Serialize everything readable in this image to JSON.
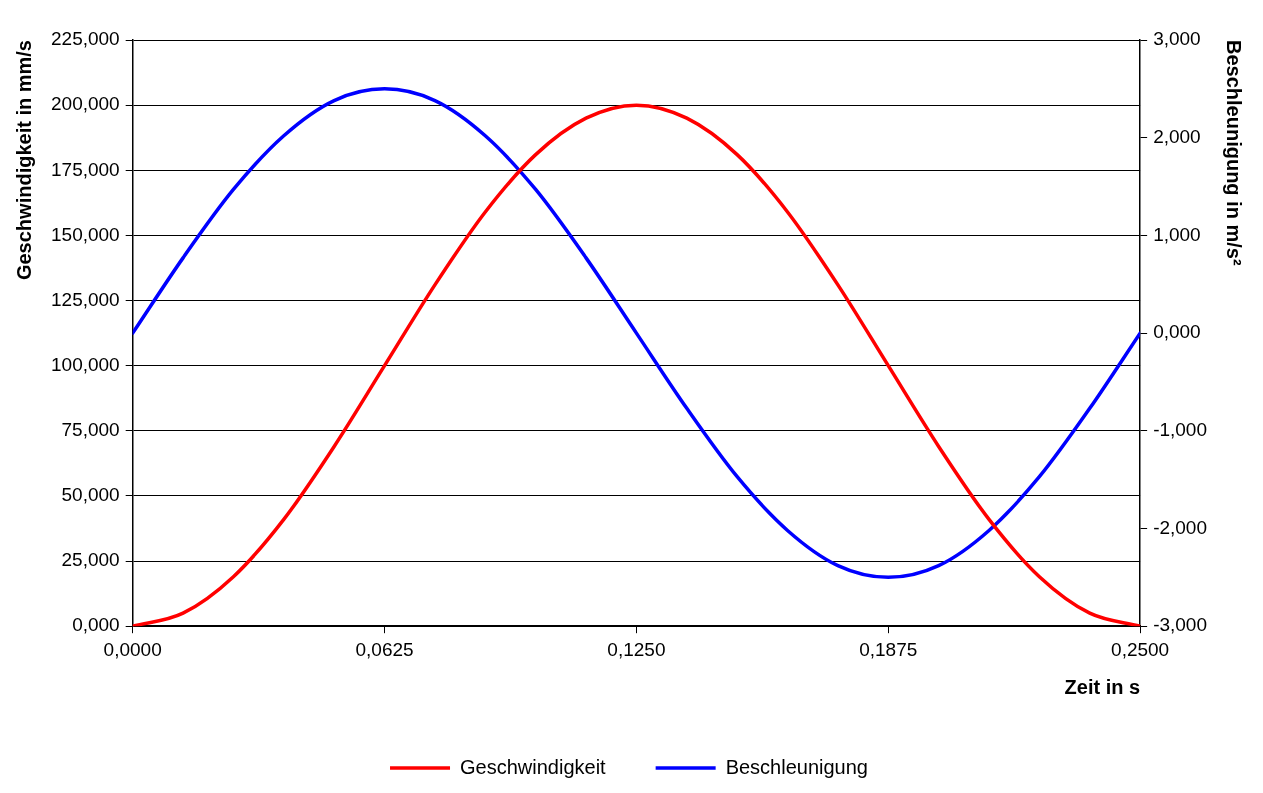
{
  "chart_data": {
    "type": "line",
    "xlabel": "Zeit in s",
    "ylabel": "Geschwindigkeit in mm/s",
    "y2label": "Beschleunigung in m/s²",
    "x": [
      0,
      0.0125,
      0.025,
      0.0375,
      0.05,
      0.0625,
      0.075,
      0.0875,
      0.1,
      0.1125,
      0.125,
      0.1375,
      0.15,
      0.1625,
      0.175,
      0.1875,
      0.2,
      0.2125,
      0.225,
      0.2375,
      0.25
    ],
    "series": [
      {
        "name": "Geschwindigkeit",
        "color": "#ff0000",
        "values": [
          0,
          5,
          19,
          41,
          69,
          100,
          131,
          159,
          181,
          195,
          200,
          195,
          181,
          159,
          131,
          100,
          69,
          41,
          19,
          5,
          0
        ]
      },
      {
        "name": "Beschleunigung",
        "color": "#0000ff",
        "axis": "y2",
        "values": [
          0,
          0.77,
          1.47,
          2.02,
          2.38,
          2.5,
          2.38,
          2.02,
          1.47,
          0.77,
          0,
          -0.77,
          -1.47,
          -2.02,
          -2.38,
          -2.5,
          -2.38,
          -2.02,
          -1.47,
          -0.77,
          0
        ]
      }
    ],
    "xlim": [
      0,
      0.25
    ],
    "xticks": [
      {
        "value": 0,
        "label": "0,0000"
      },
      {
        "value": 0.0625,
        "label": "0,0625"
      },
      {
        "value": 0.125,
        "label": "0,1250"
      },
      {
        "value": 0.1875,
        "label": "0,1875"
      },
      {
        "value": 0.25,
        "label": "0,2500"
      }
    ],
    "ylim": [
      0,
      225
    ],
    "yticks": [
      {
        "value": 0,
        "label": "0,000"
      },
      {
        "value": 25,
        "label": "25,000"
      },
      {
        "value": 50,
        "label": "50,000"
      },
      {
        "value": 75,
        "label": "75,000"
      },
      {
        "value": 100,
        "label": "100,000"
      },
      {
        "value": 125,
        "label": "125,000"
      },
      {
        "value": 150,
        "label": "150,000"
      },
      {
        "value": 175,
        "label": "175,000"
      },
      {
        "value": 200,
        "label": "200,000"
      },
      {
        "value": 225,
        "label": "225,000"
      }
    ],
    "y2lim": [
      -3,
      3
    ],
    "y2ticks": [
      {
        "value": -3,
        "label": "-3,000"
      },
      {
        "value": -2,
        "label": "-2,000"
      },
      {
        "value": -1,
        "label": "-1,000"
      },
      {
        "value": 0,
        "label": "0,000"
      },
      {
        "value": 1,
        "label": "1,000"
      },
      {
        "value": 2,
        "label": "2,000"
      },
      {
        "value": 3,
        "label": "3,000"
      }
    ],
    "grid": "y",
    "legend": "bottom",
    "marker": "none",
    "line_style": "solid"
  }
}
